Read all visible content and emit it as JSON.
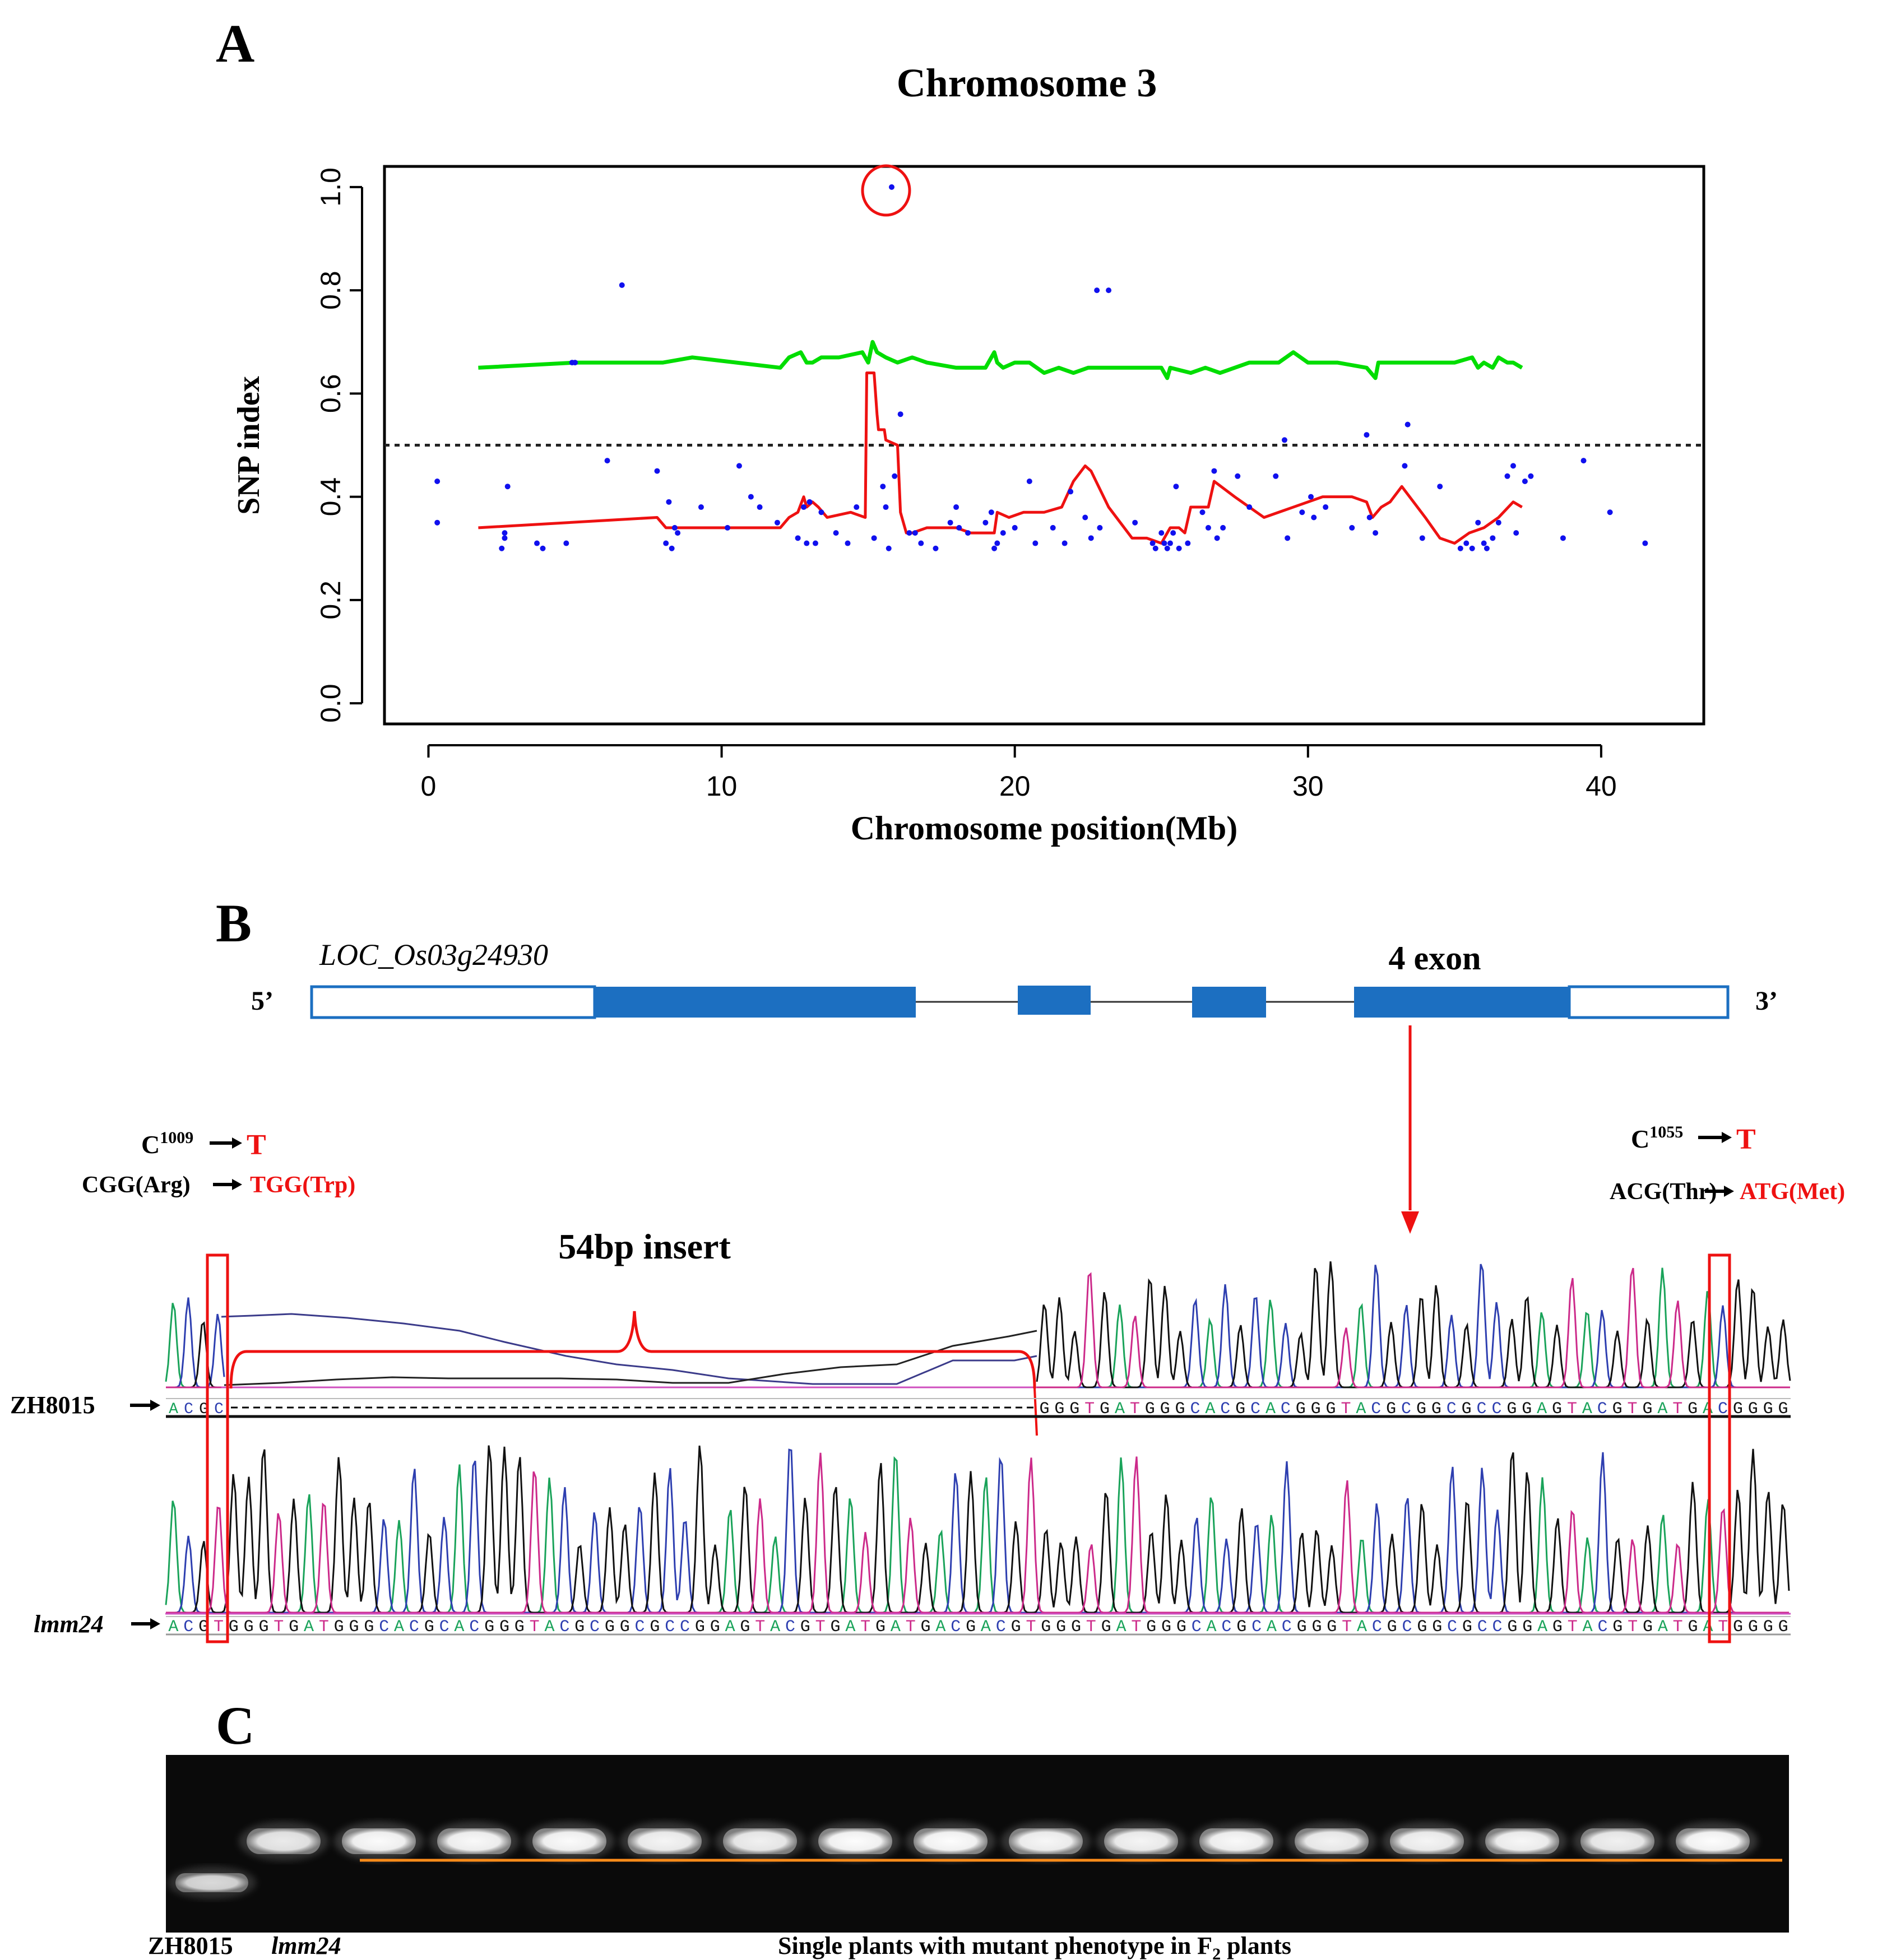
{
  "panels": {
    "a_label": "A",
    "b_label": "B",
    "c_label": "C"
  },
  "colors": {
    "snp_points": "#1010ee",
    "index_line": "#ee1111",
    "threshold_line": "#00dd00",
    "exon": "#1c6fc1",
    "highlight": "#ee1111",
    "gel_band_line": "#ff8c1a"
  },
  "chart_data": {
    "type": "scatter",
    "title": "Chromosome 3",
    "xlabel": "Chromosome position(Mb)",
    "ylabel": "SNP index",
    "xlim": [
      -1.5,
      43.5
    ],
    "ylim": [
      -0.04,
      1.04
    ],
    "xticks": [
      0,
      10,
      20,
      30,
      40
    ],
    "yticks": [
      0.0,
      0.2,
      0.4,
      0.6,
      0.8,
      1.0
    ],
    "ytick_labels": [
      "0.0",
      "0.2",
      "0.4",
      "0.6",
      "0.8",
      "1.0"
    ],
    "grid": false,
    "reference_line_y": 0.5,
    "highlighted_point": {
      "x": 15.8,
      "y": 1.0
    },
    "series": [
      {
        "kind": "points",
        "x": [
          0.3,
          0.3,
          2.5,
          2.6,
          2.6,
          2.7,
          3.7,
          3.9,
          4.7,
          4.9,
          6.1,
          6.6,
          7.8,
          8.1,
          8.2,
          8.3,
          8.4,
          8.5,
          9.3,
          10.2,
          10.6,
          11.0,
          11.3,
          11.9,
          12.6,
          12.8,
          12.9,
          13.0,
          13.2,
          13.4,
          13.9,
          14.3,
          14.6,
          15.2,
          15.5,
          15.6,
          15.7,
          15.9,
          16.1,
          16.4,
          16.6,
          16.8,
          17.3,
          17.8,
          18.0,
          18.1,
          18.4,
          19.0,
          19.2,
          19.3,
          19.4,
          19.6,
          20.0,
          20.5,
          20.7,
          21.3,
          21.7,
          21.9,
          22.4,
          22.6,
          22.9,
          23.2,
          24.1,
          24.7,
          24.8,
          25.0,
          25.1,
          25.2,
          25.3,
          25.4,
          25.5,
          25.6,
          25.9,
          26.4,
          26.6,
          26.8,
          26.9,
          27.1,
          27.6,
          28.0,
          28.9,
          29.2,
          29.3,
          29.8,
          30.1,
          30.2,
          30.6,
          31.5,
          32.0,
          32.1,
          32.3,
          33.3,
          33.4,
          33.9,
          34.5,
          35.2,
          35.4,
          35.6,
          35.8,
          36.0,
          36.1,
          36.3,
          36.5,
          36.8,
          37.0,
          37.1,
          37.4,
          37.6,
          38.7,
          39.4,
          40.3,
          41.5,
          5.0,
          22.8
        ],
        "y": [
          0.43,
          0.35,
          0.3,
          0.33,
          0.32,
          0.42,
          0.31,
          0.3,
          0.31,
          0.66,
          0.47,
          0.81,
          0.45,
          0.31,
          0.39,
          0.3,
          0.34,
          0.33,
          0.38,
          0.34,
          0.46,
          0.4,
          0.38,
          0.35,
          0.32,
          0.38,
          0.31,
          0.39,
          0.31,
          0.37,
          0.33,
          0.31,
          0.38,
          0.32,
          0.42,
          0.38,
          0.3,
          0.44,
          0.56,
          0.33,
          0.33,
          0.31,
          0.3,
          0.35,
          0.38,
          0.34,
          0.33,
          0.35,
          0.37,
          0.3,
          0.31,
          0.33,
          0.34,
          0.43,
          0.31,
          0.34,
          0.31,
          0.41,
          0.36,
          0.32,
          0.34,
          0.8,
          0.35,
          0.31,
          0.3,
          0.33,
          0.31,
          0.3,
          0.31,
          0.33,
          0.42,
          0.3,
          0.31,
          0.37,
          0.34,
          0.45,
          0.32,
          0.34,
          0.44,
          0.38,
          0.44,
          0.51,
          0.32,
          0.37,
          0.4,
          0.36,
          0.38,
          0.34,
          0.52,
          0.36,
          0.33,
          0.46,
          0.54,
          0.32,
          0.42,
          0.3,
          0.31,
          0.3,
          0.35,
          0.31,
          0.3,
          0.32,
          0.35,
          0.44,
          0.46,
          0.33,
          0.43,
          0.44,
          0.32,
          0.47,
          0.37,
          0.31,
          0.66,
          0.8
        ]
      },
      {
        "kind": "line",
        "x": [
          1.7,
          7.8,
          8.1,
          12.0,
          12.3,
          12.6,
          12.8,
          12.9,
          13.1,
          13.3,
          13.6,
          14.4,
          14.9,
          14.95,
          15.2,
          15.3,
          15.35,
          15.55,
          15.6,
          16.0,
          16.1,
          16.3,
          16.5,
          17.0,
          18.0,
          18.5,
          19.3,
          19.4,
          19.8,
          20.3,
          21.0,
          21.6,
          22.0,
          22.4,
          22.6,
          23.2,
          24.0,
          24.5,
          25.0,
          25.3,
          25.6,
          25.8,
          26.0,
          26.6,
          26.8,
          27.5,
          28.5,
          29.5,
          30.5,
          31.5,
          32.0,
          32.2,
          32.5,
          32.8,
          33.2,
          34.0,
          34.5,
          35.0,
          35.5,
          36.0,
          36.5,
          37.0,
          37.3
        ],
        "y": [
          0.34,
          0.36,
          0.34,
          0.34,
          0.36,
          0.37,
          0.4,
          0.38,
          0.39,
          0.38,
          0.36,
          0.37,
          0.36,
          0.64,
          0.64,
          0.56,
          0.53,
          0.53,
          0.51,
          0.5,
          0.37,
          0.33,
          0.33,
          0.34,
          0.34,
          0.33,
          0.33,
          0.37,
          0.36,
          0.37,
          0.37,
          0.38,
          0.43,
          0.46,
          0.45,
          0.38,
          0.32,
          0.32,
          0.31,
          0.34,
          0.34,
          0.33,
          0.38,
          0.38,
          0.43,
          0.4,
          0.36,
          0.38,
          0.4,
          0.4,
          0.39,
          0.36,
          0.38,
          0.39,
          0.42,
          0.36,
          0.32,
          0.31,
          0.33,
          0.34,
          0.36,
          0.39,
          0.38
        ]
      },
      {
        "kind": "line",
        "x": [
          1.7,
          5.0,
          8.0,
          9.0,
          12.0,
          12.3,
          12.7,
          12.9,
          13.1,
          13.4,
          14.0,
          14.8,
          15.0,
          15.15,
          15.3,
          15.6,
          16.0,
          16.5,
          17.0,
          18.0,
          19.0,
          19.3,
          19.4,
          19.6,
          20.0,
          20.5,
          21.0,
          21.5,
          22.0,
          22.5,
          23.0,
          24.0,
          25.0,
          25.2,
          25.3,
          26.0,
          26.5,
          27.0,
          28.0,
          29.0,
          29.5,
          30.0,
          30.5,
          31.0,
          32.0,
          32.3,
          32.4,
          33.0,
          34.0,
          35.0,
          35.6,
          35.8,
          36.0,
          36.3,
          36.5,
          36.8,
          37.0,
          37.3
        ],
        "y": [
          0.65,
          0.66,
          0.66,
          0.67,
          0.65,
          0.67,
          0.68,
          0.66,
          0.66,
          0.67,
          0.67,
          0.68,
          0.66,
          0.7,
          0.68,
          0.67,
          0.66,
          0.67,
          0.66,
          0.65,
          0.65,
          0.68,
          0.66,
          0.65,
          0.66,
          0.66,
          0.64,
          0.65,
          0.64,
          0.65,
          0.65,
          0.65,
          0.65,
          0.63,
          0.65,
          0.64,
          0.65,
          0.64,
          0.66,
          0.66,
          0.68,
          0.66,
          0.66,
          0.66,
          0.65,
          0.63,
          0.66,
          0.66,
          0.66,
          0.66,
          0.67,
          0.65,
          0.66,
          0.65,
          0.67,
          0.66,
          0.66,
          0.65
        ]
      }
    ]
  },
  "gene": {
    "name": "LOC_Os03g24930",
    "five_prime": "5’",
    "three_prime": "3’",
    "exon_label": "4 exon"
  },
  "mutations": {
    "left_1_base": "C",
    "left_1_sup": "1009",
    "left_1_to": "T",
    "left_2_from": "CGG(Arg)",
    "left_2_to": "TGG(Trp)",
    "right_1_base": "C",
    "right_1_sup": "1055",
    "right_1_to": "T",
    "right_2_from": "ACG(Thr)",
    "right_2_to": "ATG(Met)"
  },
  "insert_label": "54bp  insert",
  "samples": {
    "wt": "ZH8015",
    "mut": "lmm24"
  },
  "sequences": {
    "wt_left": "ACGC",
    "wt_right": "GGGTGATGGGCACGCACGGGTACGCGGCGCCGGAGTACGTGATGACGGGG",
    "mut": "ACGTGGGTGATGGGCACGCACGGGTACGCGGCGCCGGAGTACGTGATGATGACGACGTGGGTGATGGGCACGCACGGGTACGCGGCGCCGGAGTACGTGATGATGGGG"
  },
  "gel": {
    "lane_1_label": "ZH8015",
    "lane_2_label": "lmm24",
    "f2_caption_pre": "Single plants with mutant phenotype in F",
    "f2_caption_sub": "2",
    "f2_caption_post": " plants",
    "band_intensity": [
      0.82,
      0.9,
      0.98,
      0.97,
      0.98,
      0.95,
      0.93,
      0.99,
      0.99,
      0.96,
      0.95,
      0.97,
      0.94,
      0.95,
      0.96,
      0.93,
      0.99
    ]
  }
}
